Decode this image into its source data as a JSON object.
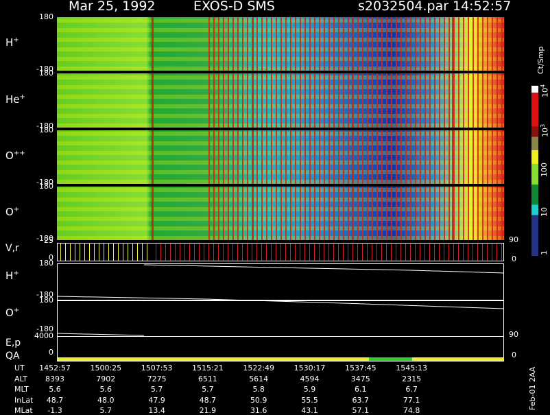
{
  "header": {
    "date": "Mar 25, 1992",
    "instrument": "EXOS-D SMS",
    "file": "s2032504.par",
    "time": "14:52:57"
  },
  "spectrograms": [
    {
      "ion": "H",
      "charge": "+",
      "top": "180",
      "bottom": "-180"
    },
    {
      "ion": "He",
      "charge": "+",
      "top": "180",
      "bottom": "-180"
    },
    {
      "ion": "O",
      "charge": "++",
      "top": "180",
      "bottom": "-180"
    },
    {
      "ion": "O",
      "charge": "+",
      "top": "180",
      "bottom": "-180"
    }
  ],
  "velocity_panel": {
    "label": "V,r",
    "left_top": "25",
    "left_bottom": "0",
    "right_top": "90",
    "right_bottom": "0"
  },
  "pitch_panels": [
    {
      "ion": "H",
      "charge": "+",
      "top": "180",
      "bottom": "-180"
    },
    {
      "ion": "O",
      "charge": "+",
      "top": "180",
      "bottom": "-180"
    }
  ],
  "energy_panel": {
    "label": "E,p",
    "left_top": "4000",
    "right_top": "90"
  },
  "qa_panel": {
    "label": "QA",
    "left": "0",
    "right": "0"
  },
  "color_bar": {
    "unit": "Ct/Smp",
    "labels": [
      {
        "base": "10",
        "exp": "4"
      },
      {
        "base": "10",
        "exp": "3"
      },
      "100",
      "10",
      "1"
    ]
  },
  "orbit_table": {
    "rows": [
      {
        "name": "UT",
        "values": [
          "1452:57",
          "1500:25",
          "1507:53",
          "1515:21",
          "1522:49",
          "1530:17",
          "1537:45",
          "1545:13"
        ]
      },
      {
        "name": "ALT",
        "values": [
          "8393",
          "7902",
          "7275",
          "6511",
          "5614",
          "4594",
          "3475",
          "2315"
        ]
      },
      {
        "name": "MLT",
        "values": [
          "5.6",
          "5.6",
          "5.7",
          "5.7",
          "5.8",
          "5.9",
          "6.1",
          "6.7"
        ]
      },
      {
        "name": "InLat",
        "values": [
          "48.7",
          "48.0",
          "47.9",
          "48.7",
          "50.9",
          "55.5",
          "63.7",
          "77.1"
        ]
      },
      {
        "name": "MLat",
        "values": [
          "-1.3",
          "5.7",
          "13.4",
          "21.9",
          "31.6",
          "43.1",
          "57.1",
          "74.8"
        ]
      }
    ]
  },
  "footnote": "Feb-01 2AA"
}
